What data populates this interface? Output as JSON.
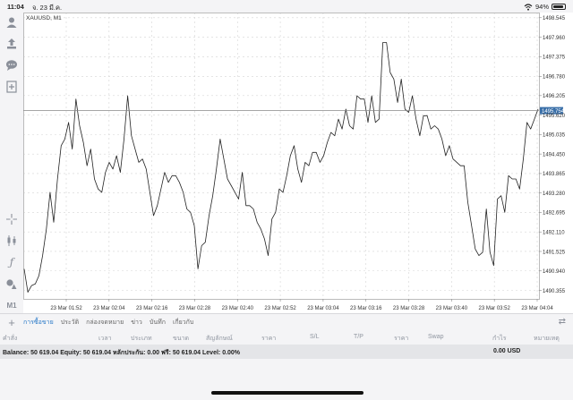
{
  "status_bar": {
    "time": "11:04",
    "date": "จ. 23 มี.ค.",
    "battery": "94%",
    "battery_level": 0.94,
    "wifi_icon": "wifi-icon"
  },
  "chart": {
    "symbol_label": "XAUUSD, M1",
    "current_price": "1495.754",
    "colors": {
      "line": "#222222",
      "price_tag_bg": "#3a6fa8",
      "grid": "#d4d4d4",
      "current_price_line": "#888888"
    }
  },
  "toolbar_icons": [
    "account-icon",
    "trade-icon",
    "chat-icon",
    "add-icon",
    "crosshair-icon",
    "candlestick-icon",
    "indicator-icon",
    "objects-icon"
  ],
  "toolbar_timeframe": "M1",
  "tabs": [
    "การซื้อขาย",
    "ประวัติ",
    "กล่องจดหมาย",
    "ข่าว",
    "บันทึก",
    "เกี่ยวกับ"
  ],
  "active_tab": 0,
  "table_headers": [
    "คำสั่ง",
    "เวลา",
    "ประเภท",
    "ขนาด",
    "สัญลักษณ์",
    "ราคา",
    "S/L",
    "T/P",
    "ราคา",
    "Swap",
    "กำไร",
    "หมายเหตุ"
  ],
  "balance_text": "Balance: 50 619.04 Equity: 50 619.04 หลักประกัน: 0.00 ฟรี: 50 619.04 Level: 0.00%",
  "profit_text": "0.00  USD",
  "chart_data": {
    "type": "line",
    "title": "XAUUSD, M1",
    "x_ticks": [
      "23 Mar 01:52",
      "23 Mar 02:04",
      "23 Mar 02:16",
      "23 Mar 02:28",
      "23 Mar 02:40",
      "23 Mar 02:52",
      "23 Mar 03:04",
      "23 Mar 03:16",
      "23 Mar 03:28",
      "23 Mar 03:40",
      "23 Mar 03:52",
      "23 Mar 04:04"
    ],
    "y_ticks": [
      "1498.545",
      "1497.960",
      "1497.375",
      "1496.780",
      "1496.205",
      "1495.620",
      "1495.035",
      "1494.450",
      "1493.865",
      "1493.280",
      "1492.695",
      "1492.110",
      "1491.525",
      "1490.940",
      "1490.355"
    ],
    "ylim": [
      1490.1,
      1498.7
    ],
    "current_price": 1495.754,
    "grid": true,
    "series": [
      {
        "values": [
          1491.0,
          1490.3,
          1490.5,
          1490.55,
          1490.8,
          1491.4,
          1492.2,
          1493.3,
          1492.4,
          1493.7,
          1494.7,
          1494.9,
          1495.4,
          1494.6,
          1496.1,
          1495.3,
          1494.8,
          1494.1,
          1494.6,
          1493.7,
          1493.4,
          1493.3,
          1493.9,
          1494.2,
          1494.0,
          1494.4,
          1493.9,
          1494.9,
          1496.2,
          1495.0,
          1494.6,
          1494.2,
          1494.3,
          1494.0,
          1493.3,
          1492.6,
          1492.9,
          1493.4,
          1493.9,
          1493.6,
          1493.8,
          1493.8,
          1493.6,
          1493.3,
          1492.8,
          1492.7,
          1492.3,
          1491.0,
          1491.7,
          1491.8,
          1492.6,
          1493.2,
          1494.0,
          1494.9,
          1494.3,
          1493.7,
          1493.5,
          1493.3,
          1493.1,
          1493.9,
          1492.9,
          1492.9,
          1492.8,
          1492.4,
          1492.2,
          1491.9,
          1491.4,
          1492.5,
          1492.7,
          1493.4,
          1493.3,
          1493.8,
          1494.4,
          1494.7,
          1494.0,
          1493.6,
          1494.2,
          1494.1,
          1494.5,
          1494.5,
          1494.2,
          1494.4,
          1494.8,
          1495.1,
          1495.0,
          1495.5,
          1495.2,
          1495.8,
          1495.3,
          1495.2,
          1496.2,
          1496.1,
          1496.1,
          1495.4,
          1496.2,
          1495.4,
          1495.5,
          1497.8,
          1497.8,
          1496.9,
          1496.7,
          1496.0,
          1496.7,
          1495.8,
          1495.7,
          1496.2,
          1495.5,
          1495.0,
          1495.6,
          1495.6,
          1495.2,
          1495.3,
          1495.2,
          1494.9,
          1494.4,
          1494.7,
          1494.3,
          1494.2,
          1494.1,
          1494.1,
          1493.0,
          1492.3,
          1491.6,
          1491.4,
          1491.5,
          1492.8,
          1491.5,
          1491.1,
          1493.1,
          1493.2,
          1492.7,
          1493.8,
          1493.7,
          1493.7,
          1493.4,
          1494.3,
          1495.4,
          1495.2,
          1495.5,
          1495.8
        ]
      }
    ]
  }
}
